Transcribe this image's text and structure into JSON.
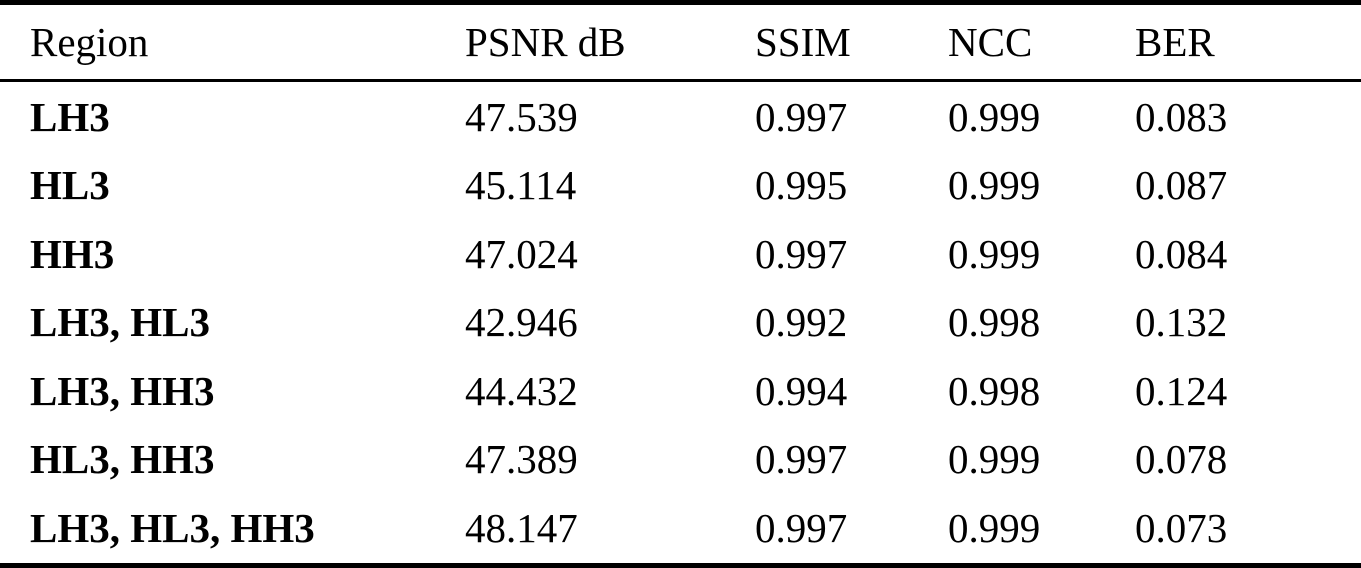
{
  "colors": {
    "text": "#000000",
    "background": "#ffffff",
    "rule": "#000000"
  },
  "table": {
    "columns": [
      "Region",
      "PSNR dB",
      "SSIM",
      "NCC",
      "BER"
    ],
    "rows": [
      [
        "LH3",
        "47.539",
        "0.997",
        "0.999",
        "0.083"
      ],
      [
        "HL3",
        "45.114",
        "0.995",
        "0.999",
        "0.087"
      ],
      [
        "HH3",
        "47.024",
        "0.997",
        "0.999",
        "0.084"
      ],
      [
        "LH3, HL3",
        "42.946",
        "0.992",
        "0.998",
        "0.132"
      ],
      [
        "LH3, HH3",
        "44.432",
        "0.994",
        "0.998",
        "0.124"
      ],
      [
        "HL3, HH3",
        "47.389",
        "0.997",
        "0.999",
        "0.078"
      ],
      [
        "LH3, HL3, HH3",
        "48.147",
        "0.997",
        "0.999",
        "0.073"
      ]
    ]
  },
  "chart_data": {
    "type": "table",
    "title": "",
    "categories": [
      "LH3",
      "HL3",
      "HH3",
      "LH3, HL3",
      "LH3, HH3",
      "HL3, HH3",
      "LH3, HL3, HH3"
    ],
    "series": [
      {
        "name": "PSNR dB",
        "values": [
          47.539,
          45.114,
          47.024,
          42.946,
          44.432,
          47.389,
          48.147
        ]
      },
      {
        "name": "SSIM",
        "values": [
          0.997,
          0.995,
          0.997,
          0.992,
          0.994,
          0.997,
          0.997
        ]
      },
      {
        "name": "NCC",
        "values": [
          0.999,
          0.999,
          0.999,
          0.998,
          0.998,
          0.999,
          0.999
        ]
      },
      {
        "name": "BER",
        "values": [
          0.083,
          0.087,
          0.084,
          0.132,
          0.124,
          0.078,
          0.073
        ]
      }
    ]
  }
}
